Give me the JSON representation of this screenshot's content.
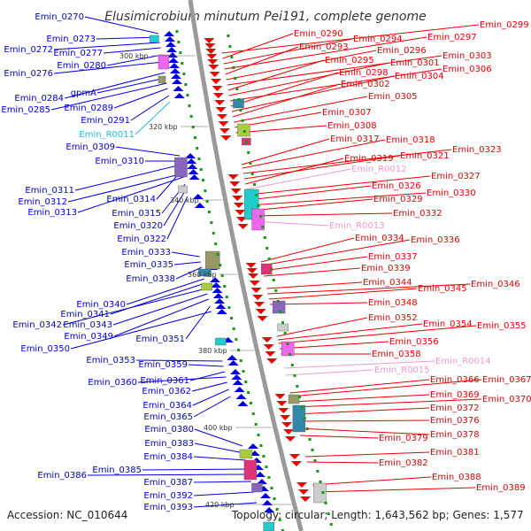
{
  "title": "Elusimicrobium minutum Pei191, complete genome",
  "accession": "Accession: NC_010644",
  "summary": "Topology: circular; Length: 1,643,562 bp; Genes: 1,577",
  "colors": {
    "forward": "#0000dd",
    "reverse": "#ee0000",
    "rna_forward": "#22bbdd",
    "rna_reverse": "#ee99cc",
    "backbone": "#999999",
    "tick": "#119911"
  },
  "kbp_ticks": [
    "300 kbp",
    "320 kbp",
    "340 kbp",
    "360 kbp",
    "380 kbp",
    "400 kbp",
    "420 kbp"
  ],
  "left_labels": [
    "Emin_0270",
    "Emin_0273",
    "Emin_0272",
    "Emin_0277",
    "Emin_0280",
    "Emin_0276",
    "Emin_0284",
    "gpmA",
    "Emin_0285",
    "Emin_0289",
    "Emin_0291",
    "Emin_R0011",
    "Emin_0309",
    "Emin_0310",
    "Emin_0311",
    "Emin_0314",
    "Emin_0312",
    "Emin_0313",
    "Emin_0315",
    "Emin_0320",
    "Emin_0322",
    "Emin_0333",
    "Emin_0335",
    "Emin_0338",
    "Emin_0340",
    "Emin_0341",
    "Emin_0342",
    "Emin_0343",
    "Emin_0349",
    "Emin_0351",
    "Emin_0350",
    "Emin_0353",
    "Emin_0359",
    "Emin_0361",
    "Emin_0360",
    "Emin_0362",
    "Emin_0364",
    "Emin_0365",
    "Emin_0380",
    "Emin_0383",
    "Emin_0384",
    "Emin_0385",
    "Emin_0386",
    "Emin_0387",
    "Emin_0392",
    "Emin_0393"
  ],
  "right_labels": [
    "Emin_0299",
    "Emin_0290",
    "Emin_0294",
    "Emin_0297",
    "Emin_0293",
    "Emin_0296",
    "Emin_0303",
    "Emin_0295",
    "Emin_0301",
    "Emin_0306",
    "Emin_0298",
    "Emin_0304",
    "Emin_0302",
    "Emin_0305",
    "Emin_0307",
    "Emin_0308",
    "Emin_0317",
    "Emin_0318",
    "Emin_0323",
    "Emin_0321",
    "Emin_0319",
    "Emin_R0012",
    "Emin_0327",
    "Emin_0326",
    "Emin_0330",
    "Emin_0329",
    "Emin_0332",
    "Emin_R0013",
    "Emin_0334",
    "Emin_0336",
    "Emin_0337",
    "Emin_0339",
    "Emin_0344",
    "Emin_0346",
    "Emin_0345",
    "Emin_0348",
    "Emin_0352",
    "Emin_0354",
    "Emin_0355",
    "Emin_0356",
    "Emin_0358",
    "Emin_R0014",
    "Emin_R0015",
    "Emin_0366",
    "Emin_0367",
    "Emin_0369",
    "Emin_0370",
    "Emin_0372",
    "Emin_0376",
    "Emin_0378",
    "Emin_0379",
    "Emin_0381",
    "Emin_0382",
    "Emin_0388",
    "Emin_0389"
  ]
}
